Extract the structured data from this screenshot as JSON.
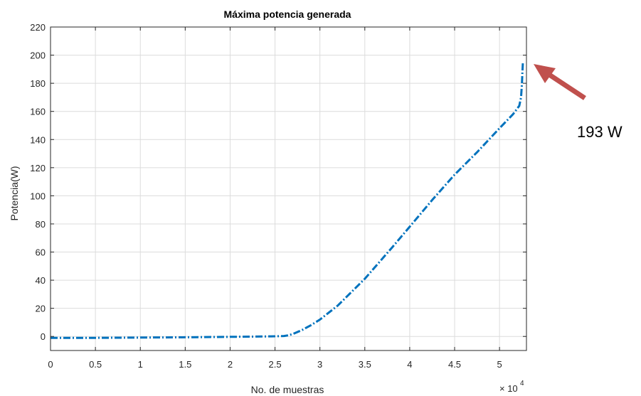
{
  "chart_data": {
    "type": "line",
    "title": "Máxima potencia generada",
    "xlabel": "No. de muestras",
    "ylabel": "Potencia(W)",
    "x_exponent_base": "× 10",
    "x_exponent_power": "4",
    "xlim": [
      0,
      5.3
    ],
    "ylim": [
      -10,
      220
    ],
    "xticks": [
      0,
      0.5,
      1,
      1.5,
      2,
      2.5,
      3,
      3.5,
      4,
      4.5,
      5
    ],
    "xtick_labels": [
      "0",
      "0.5",
      "1",
      "1.5",
      "2",
      "2.5",
      "3",
      "3.5",
      "4",
      "4.5",
      "5"
    ],
    "yticks": [
      0,
      20,
      40,
      60,
      80,
      100,
      120,
      140,
      160,
      180,
      200,
      220
    ],
    "ytick_labels": [
      "0",
      "20",
      "40",
      "60",
      "80",
      "100",
      "120",
      "140",
      "160",
      "180",
      "200",
      "220"
    ],
    "grid": true,
    "series": [
      {
        "color": "#0072bd",
        "line_style": "dash-dot",
        "x": [
          0,
          0.5,
          1,
          1.5,
          2,
          2.3,
          2.5,
          2.6,
          2.65,
          2.7,
          2.8,
          2.9,
          3.0,
          3.2,
          3.5,
          3.8,
          4.0,
          4.25,
          4.5,
          4.75,
          5.0,
          5.15,
          5.22,
          5.24,
          5.25,
          5.255,
          5.26
        ],
        "y": [
          -1,
          -1,
          -0.8,
          -0.6,
          -0.3,
          -0.1,
          0.1,
          0.3,
          0.8,
          1.8,
          4.5,
          8,
          12,
          22,
          41,
          63,
          78,
          97,
          115,
          131,
          148,
          158,
          164,
          170,
          180,
          188,
          195
        ]
      }
    ],
    "annotation": {
      "text": "193 W",
      "arrow_color": "#c0504d"
    }
  }
}
